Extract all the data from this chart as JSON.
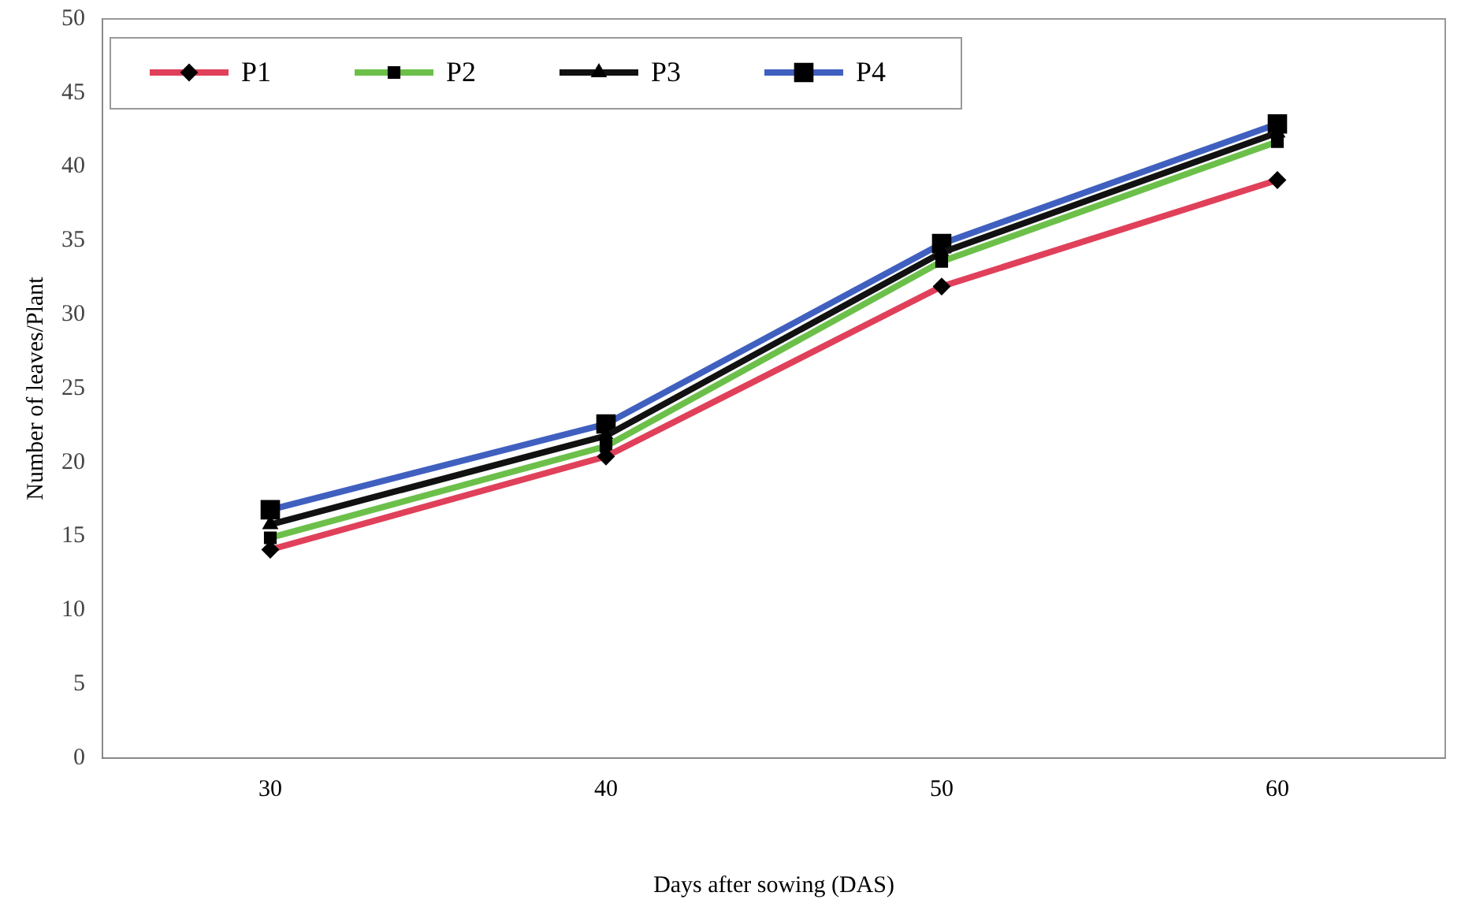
{
  "chart_data": {
    "type": "line",
    "xlabel": "Days after sowing (DAS)",
    "ylabel": "Number of leaves/Plant",
    "categories": [
      "30",
      "40",
      "50",
      "60"
    ],
    "series": [
      {
        "name": "P1",
        "color": "#e0405a",
        "marker": "diamond",
        "values": [
          14.1,
          20.4,
          31.9,
          39.1
        ]
      },
      {
        "name": "P2",
        "color": "#6cc04a",
        "marker": "square",
        "values": [
          14.9,
          21.1,
          33.6,
          41.7
        ]
      },
      {
        "name": "P3",
        "color": "#111111",
        "marker": "triangle",
        "values": [
          15.8,
          21.8,
          34.2,
          42.3
        ]
      },
      {
        "name": "P4",
        "color": "#4060c0",
        "marker": "square",
        "values": [
          16.8,
          22.6,
          34.8,
          42.9
        ]
      }
    ],
    "ylim": [
      0,
      50
    ],
    "yticks": [
      0,
      5,
      10,
      15,
      20,
      25,
      30,
      35,
      40,
      45,
      50
    ],
    "grid": false,
    "legend": "top"
  }
}
